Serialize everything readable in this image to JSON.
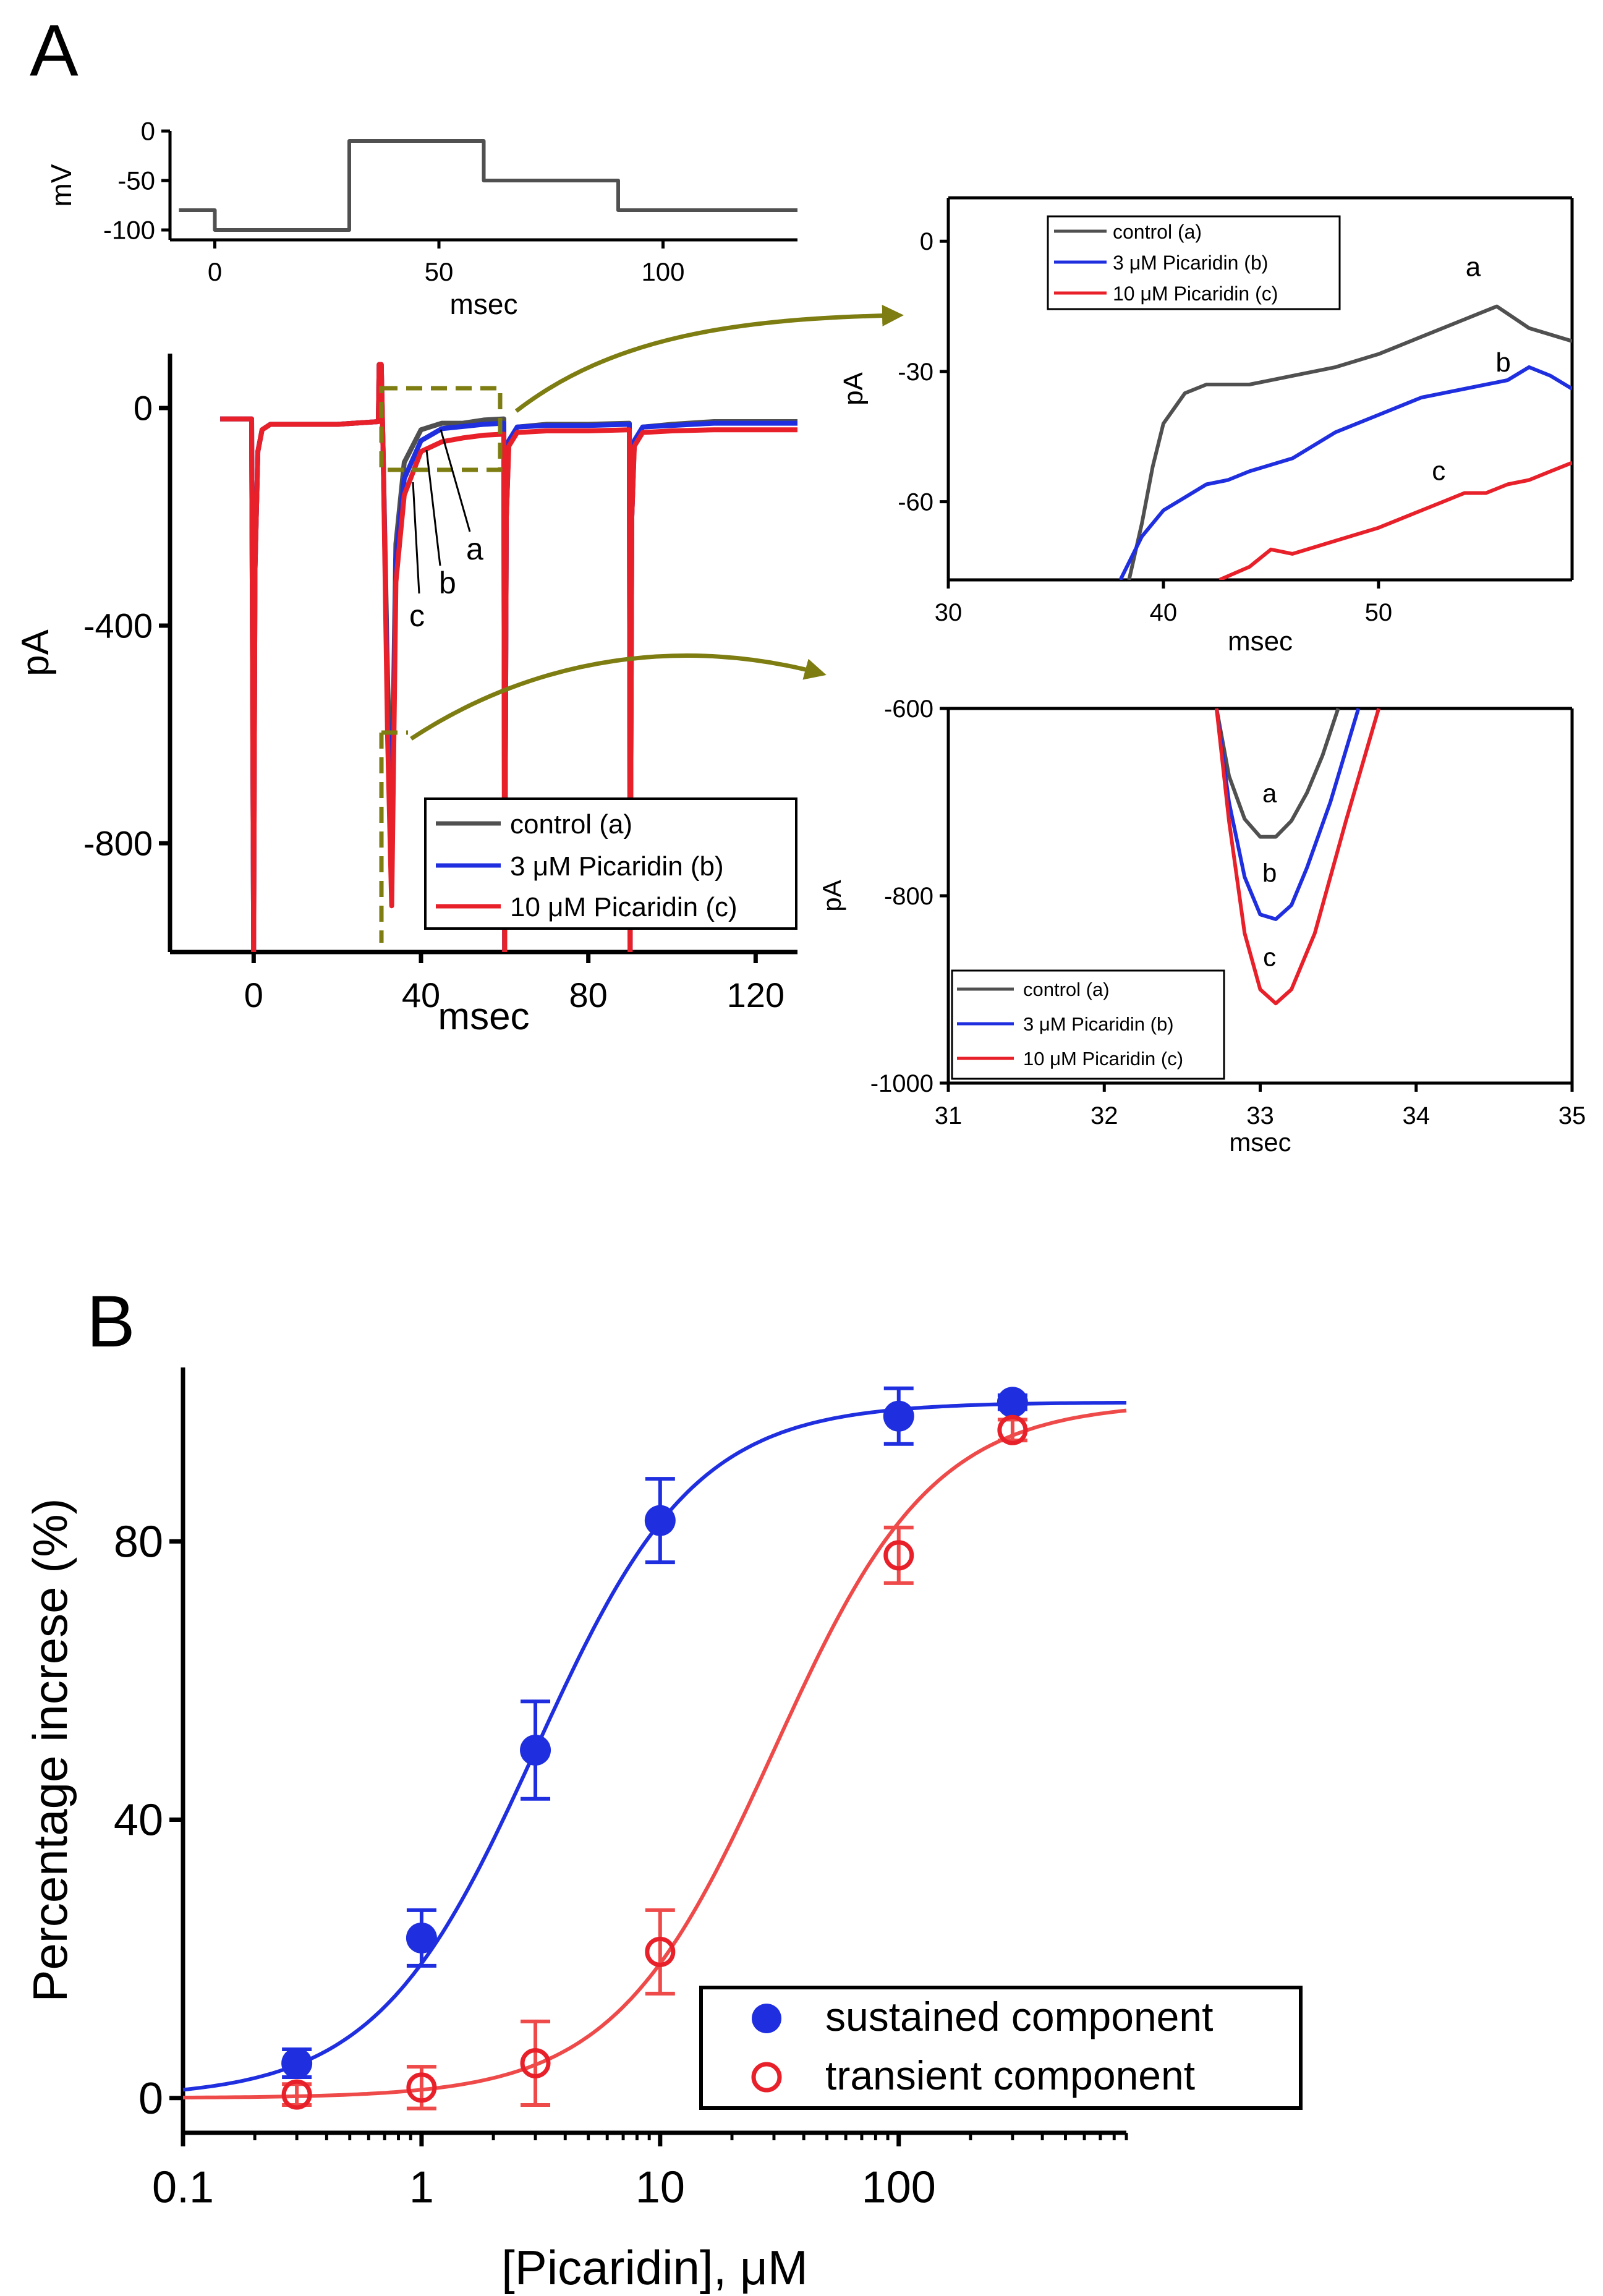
{
  "panel_labels": {
    "a": "A",
    "b": "B"
  },
  "colors": {
    "control": "#505050",
    "picaridin_3": "#1f2fe0",
    "picaridin_10": "#e8202a",
    "zoom_arrow": "#7d7d12",
    "axis": "#000000",
    "fit_blue": "#1f2fe0",
    "fit_red": "#ef4a4a"
  },
  "legend_labels": {
    "control": "control (a)",
    "picaridin_3": "3 μM Picaridin (b)",
    "picaridin_10": "10 μM Picaridin (c)"
  },
  "trace_letters": {
    "a": "a",
    "b": "b",
    "c": "c"
  },
  "chart_data": [
    {
      "id": "voltage_protocol",
      "type": "line",
      "xlabel": "msec",
      "ylabel": "mV",
      "xlim": [
        -10,
        130
      ],
      "ylim": [
        -110,
        0
      ],
      "xticks": [
        0,
        50,
        100
      ],
      "yticks": [
        0,
        -50,
        -100
      ],
      "series": [
        {
          "x": [
            -8,
            0,
            0,
            30,
            30,
            60,
            60,
            90,
            90,
            130
          ],
          "y": [
            -80,
            -80,
            -100,
            -100,
            -10,
            -10,
            -50,
            -50,
            -80,
            -80
          ]
        }
      ]
    },
    {
      "id": "current_traces",
      "type": "line",
      "xlabel": "msec",
      "ylabel": "pA",
      "xlim": [
        -20,
        130
      ],
      "ylim": [
        -1000,
        100
      ],
      "xticks": [
        0,
        40,
        80,
        120
      ],
      "yticks": [
        0,
        -400,
        -800
      ],
      "legend": "lower-right",
      "series": [
        {
          "name": "control (a)",
          "key": "control",
          "x": [
            -8,
            -0.5,
            0,
            0.3,
            1,
            2,
            4,
            10,
            20,
            29.8,
            30,
            30.5,
            31,
            32,
            33,
            33.5,
            34,
            36,
            40,
            45,
            50,
            55,
            59.8,
            60,
            60.4,
            61,
            63,
            70,
            80,
            89.8,
            90,
            90.4,
            91,
            93,
            100,
            110,
            120,
            130
          ],
          "y": [
            -20,
            -20,
            -1000,
            -300,
            -80,
            -40,
            -30,
            -30,
            -30,
            -25,
            80,
            80,
            -100,
            -500,
            -740,
            -500,
            -250,
            -100,
            -40,
            -28,
            -28,
            -22,
            -20,
            -1000,
            -200,
            -60,
            -35,
            -30,
            -30,
            -28,
            -1000,
            -200,
            -60,
            -35,
            -30,
            -25,
            -25,
            -25
          ]
        },
        {
          "name": "3 μM Picaridin (b)",
          "key": "picaridin_3",
          "x": [
            -8,
            -0.5,
            0,
            0.3,
            1,
            2,
            4,
            10,
            20,
            29.8,
            30,
            30.5,
            31,
            32,
            33,
            33.5,
            34,
            36,
            40,
            45,
            50,
            55,
            59.8,
            60,
            60.4,
            61,
            63,
            70,
            80,
            89.8,
            90,
            90.4,
            91,
            93,
            100,
            110,
            120,
            130
          ],
          "y": [
            -20,
            -20,
            -1000,
            -300,
            -80,
            -40,
            -30,
            -30,
            -30,
            -25,
            80,
            80,
            -100,
            -550,
            -825,
            -560,
            -280,
            -130,
            -60,
            -38,
            -34,
            -30,
            -28,
            -1000,
            -200,
            -60,
            -35,
            -32,
            -32,
            -30,
            -1000,
            -200,
            -60,
            -35,
            -32,
            -28,
            -28,
            -28
          ]
        },
        {
          "name": "10 μM Picaridin (c)",
          "key": "picaridin_10",
          "x": [
            -8,
            -0.5,
            0,
            0.3,
            1,
            2,
            4,
            10,
            20,
            29.8,
            30,
            30.5,
            31,
            32,
            33,
            33.5,
            34,
            36,
            40,
            45,
            50,
            55,
            59.8,
            60,
            60.4,
            61,
            63,
            70,
            80,
            89.8,
            90,
            90.4,
            91,
            93,
            100,
            110,
            120,
            130
          ],
          "y": [
            -20,
            -20,
            -1000,
            -300,
            -80,
            -40,
            -30,
            -30,
            -30,
            -25,
            80,
            80,
            -100,
            -600,
            -915,
            -620,
            -320,
            -160,
            -80,
            -62,
            -55,
            -50,
            -48,
            -1000,
            -200,
            -70,
            -45,
            -42,
            -42,
            -40,
            -1000,
            -200,
            -70,
            -45,
            -42,
            -40,
            -40,
            -40
          ]
        }
      ]
    },
    {
      "id": "zoom_late",
      "type": "line",
      "xlabel": "msec",
      "ylabel": "pA",
      "xlim": [
        30,
        59
      ],
      "ylim": [
        -78,
        10
      ],
      "xticks": [
        30,
        40,
        50
      ],
      "yticks": [
        0,
        -30,
        -60
      ],
      "legend": "top-left",
      "series": [
        {
          "name": "control (a)",
          "key": "control",
          "x": [
            38.4,
            39,
            39.5,
            40,
            41,
            42,
            44,
            46,
            48,
            50,
            52,
            54,
            55.5,
            57,
            59
          ],
          "y": [
            -78,
            -65,
            -52,
            -42,
            -35,
            -33,
            -33,
            -31,
            -29,
            -26,
            -22,
            -18,
            -15,
            -20,
            -23
          ]
        },
        {
          "name": "3 μM Picaridin (b)",
          "key": "picaridin_3",
          "x": [
            38,
            39,
            40,
            41,
            42,
            43,
            44,
            46,
            48,
            50,
            52,
            54,
            56,
            57,
            58,
            59
          ],
          "y": [
            -78,
            -68,
            -62,
            -59,
            -56,
            -55,
            -53,
            -50,
            -44,
            -40,
            -36,
            -34,
            -32,
            -29,
            -31,
            -34
          ]
        },
        {
          "name": "10 μM Picaridin (c)",
          "key": "picaridin_10",
          "x": [
            42.6,
            44,
            45,
            46,
            48,
            50,
            52,
            53,
            54,
            55,
            56,
            57,
            58,
            59
          ],
          "y": [
            -78,
            -75,
            -71,
            -72,
            -69,
            -66,
            -62,
            -60,
            -58,
            -58,
            -56,
            -55,
            -53,
            -51
          ]
        }
      ],
      "annotations": [
        {
          "text": "a",
          "x": 54.4,
          "y": -8
        },
        {
          "text": "b",
          "x": 55.8,
          "y": -30
        },
        {
          "text": "c",
          "x": 52.8,
          "y": -55
        }
      ]
    },
    {
      "id": "zoom_peak",
      "type": "line",
      "xlabel": "msec",
      "ylabel": "pA",
      "xlim": [
        31,
        35
      ],
      "ylim": [
        -1000,
        -600
      ],
      "xticks": [
        31,
        32,
        33,
        34,
        35
      ],
      "yticks": [
        -600,
        -800,
        -1000
      ],
      "legend": "bottom-left",
      "series": [
        {
          "name": "control (a)",
          "key": "control",
          "x": [
            32.72,
            32.8,
            32.9,
            33.0,
            33.1,
            33.2,
            33.3,
            33.4,
            33.5
          ],
          "y": [
            -600,
            -672,
            -718,
            -737,
            -737,
            -720,
            -690,
            -650,
            -600
          ]
        },
        {
          "name": "3 μM Picaridin (b)",
          "key": "picaridin_3",
          "x": [
            32.72,
            32.8,
            32.9,
            33.0,
            33.1,
            33.2,
            33.3,
            33.45,
            33.63
          ],
          "y": [
            -600,
            -700,
            -780,
            -820,
            -825,
            -810,
            -770,
            -700,
            -600
          ]
        },
        {
          "name": "10 μM Picaridin (c)",
          "key": "picaridin_10",
          "x": [
            32.72,
            32.8,
            32.9,
            33.0,
            33.1,
            33.2,
            33.35,
            33.55,
            33.76
          ],
          "y": [
            -600,
            -720,
            -840,
            -900,
            -915,
            -900,
            -840,
            -720,
            -600
          ]
        }
      ],
      "annotations": [
        {
          "text": "a",
          "x": 33.06,
          "y": -700
        },
        {
          "text": "b",
          "x": 33.06,
          "y": -785
        },
        {
          "text": "c",
          "x": 33.06,
          "y": -875
        }
      ]
    },
    {
      "id": "concentration_response",
      "type": "scatter",
      "xlabel": "[Picaridin], μM",
      "ylabel": "Percentage increse (%)",
      "xscale": "log",
      "xlim": [
        0.1,
        900
      ],
      "ylim": [
        -5,
        105
      ],
      "xticks": [
        0.1,
        1,
        10,
        100
      ],
      "xtick_labels": [
        "0.1",
        "1",
        "10",
        "100"
      ],
      "yticks": [
        0,
        40,
        80
      ],
      "legend": "lower-right",
      "series": [
        {
          "name": "sustained component",
          "key": "sustained",
          "marker": "filled-circle",
          "x": [
            0.3,
            1,
            3,
            10,
            100,
            300
          ],
          "y": [
            5,
            23,
            50,
            83,
            98,
            100
          ],
          "err": [
            2,
            4,
            7,
            6,
            4,
            1
          ],
          "fit": {
            "ec50": 3,
            "hill": 1.3,
            "max": 100
          }
        },
        {
          "name": "transient component",
          "key": "transient",
          "marker": "open-circle",
          "x": [
            0.3,
            1,
            3,
            10,
            100,
            300
          ],
          "y": [
            0.5,
            1.5,
            5,
            21,
            78,
            96
          ],
          "err": [
            1.5,
            3,
            6,
            6,
            4,
            1.5
          ],
          "fit": {
            "ec50": 30,
            "hill": 1.3,
            "max": 100
          }
        }
      ]
    }
  ]
}
